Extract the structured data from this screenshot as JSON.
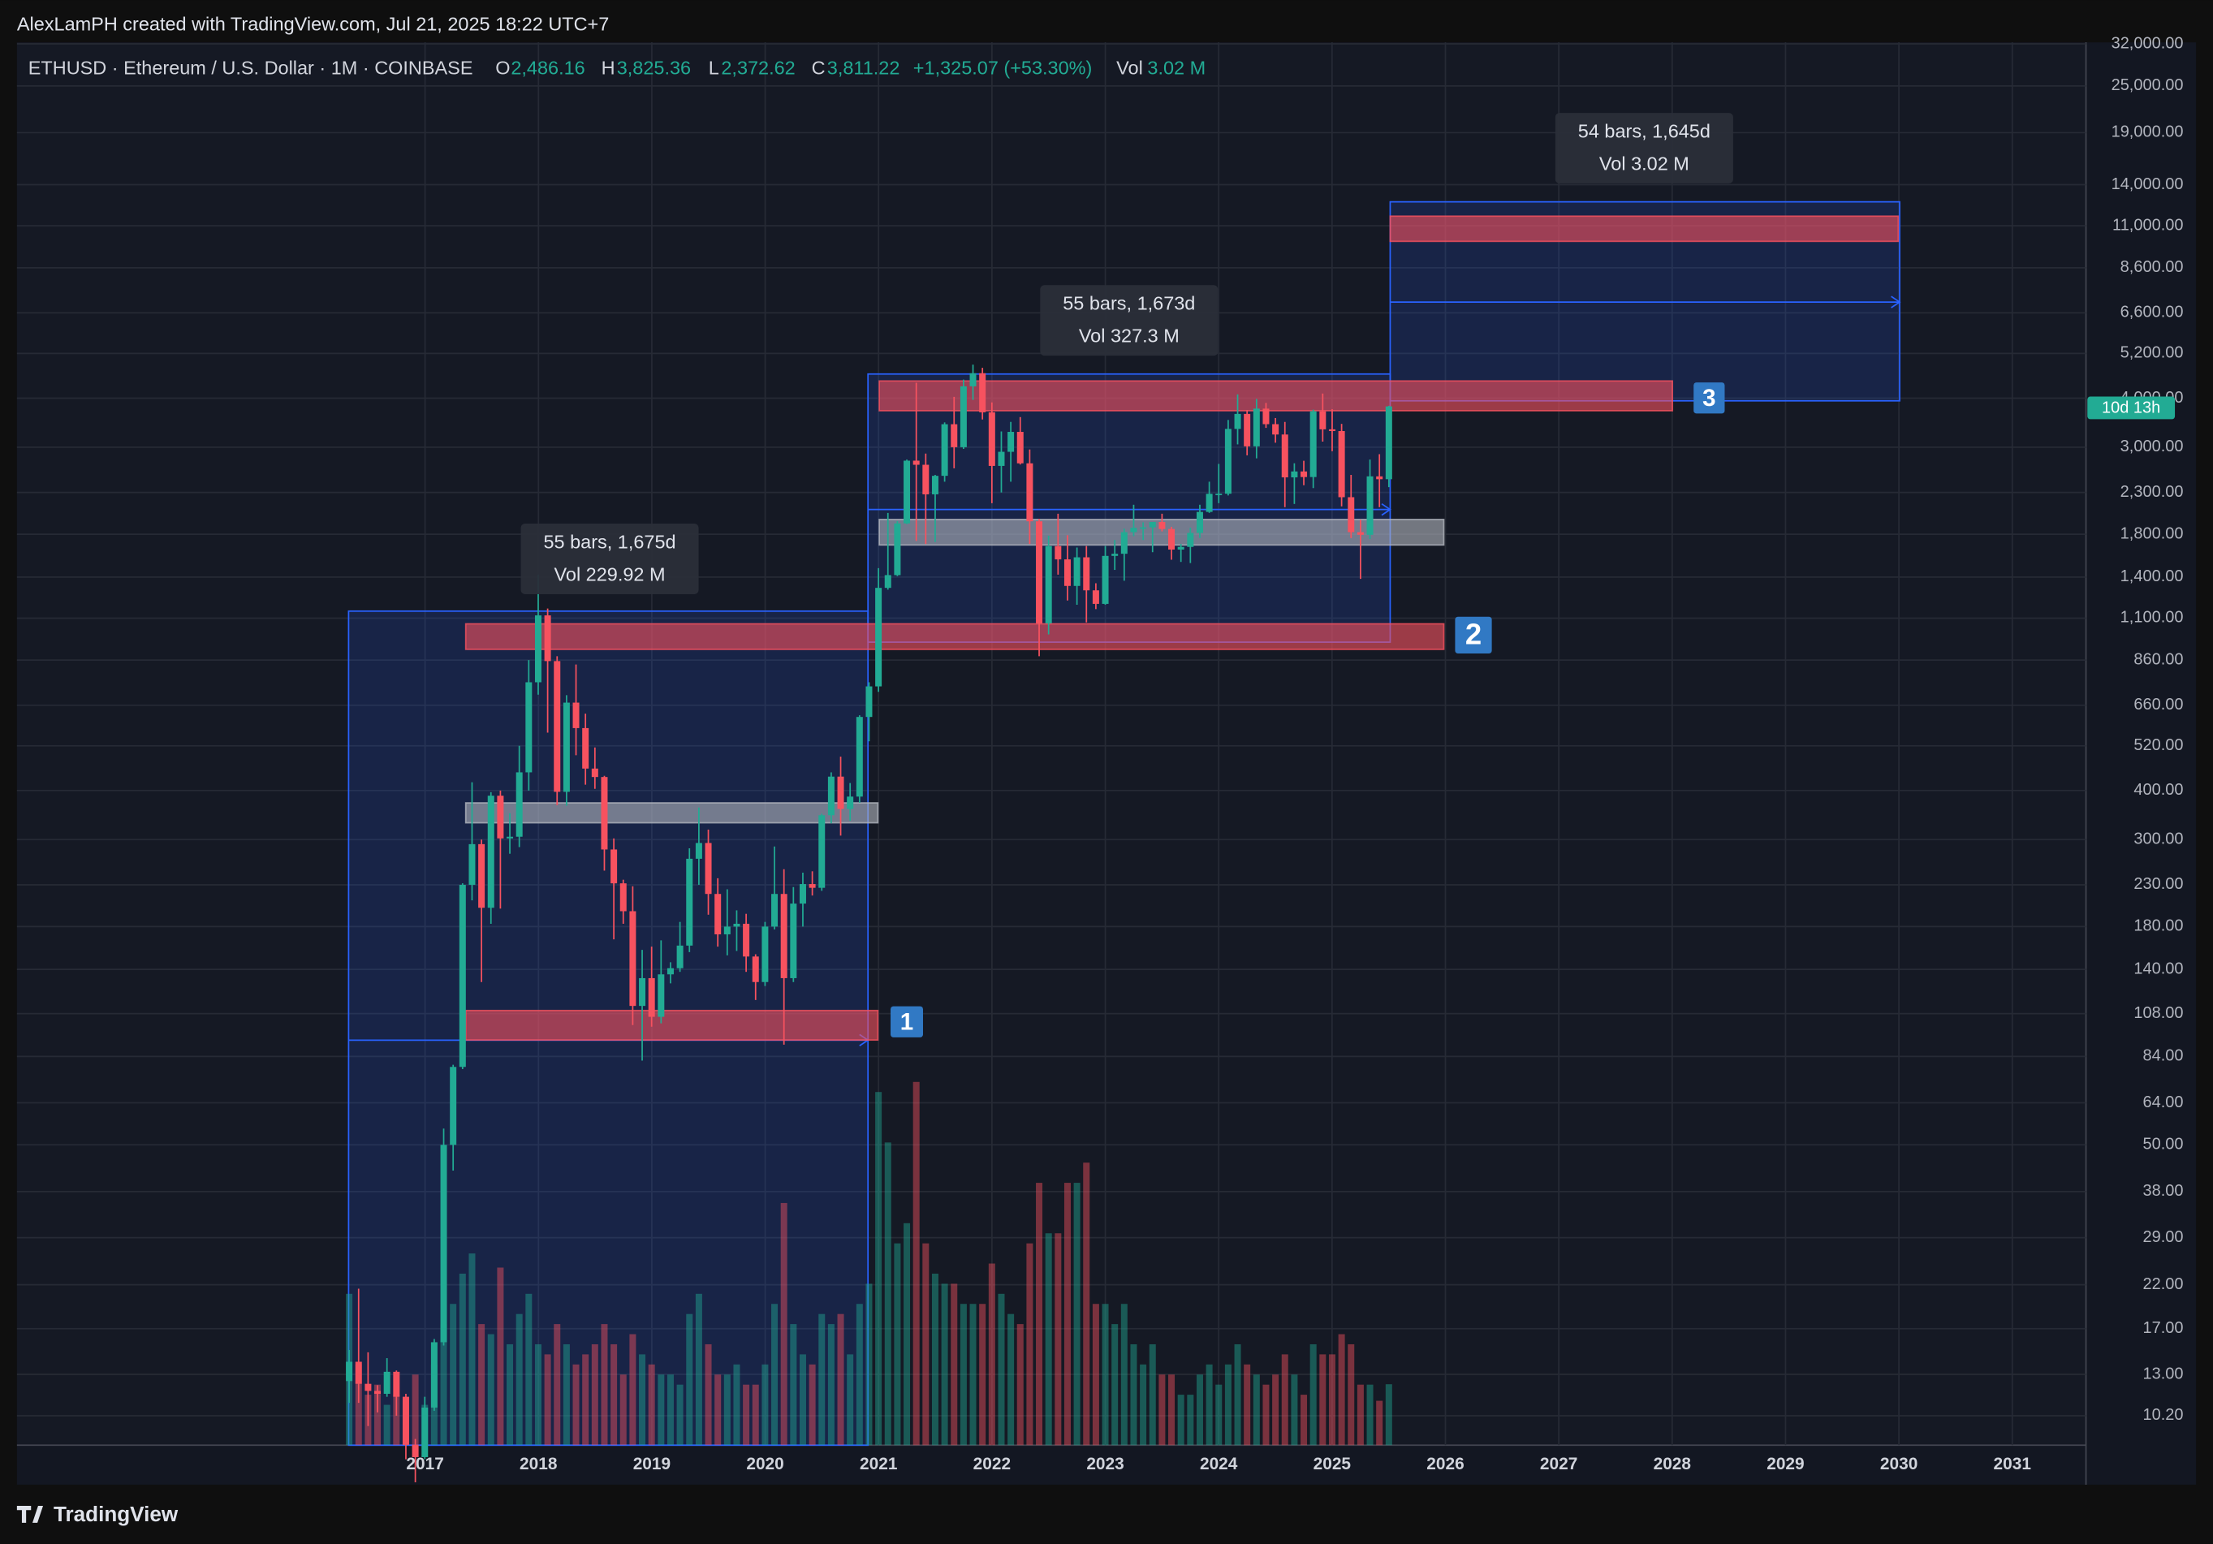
{
  "header": {
    "title": "AlexLamPH created with TradingView.com, Jul 21, 2025 18:22 UTC+7"
  },
  "legend": {
    "symbol": "ETHUSD · Ethereum / U.S. Dollar · 1M · COINBASE",
    "o_label": "O",
    "o": "2,486.16",
    "h_label": "H",
    "h": "3,825.36",
    "l_label": "L",
    "l": "2,372.62",
    "c_label": "C",
    "c": "3,811.22",
    "change": "+1,325.07 (+53.30%)",
    "vol_label": "Vol",
    "vol": "3.02 M"
  },
  "chart_data": {
    "type": "candlestick",
    "log_scale": true,
    "grid": true,
    "colors": {
      "up": "#22ab94",
      "down": "#f7525f"
    },
    "ylim": [
      8.58,
      32280
    ],
    "yticks": [
      {
        "value": 32000,
        "label": "32,000.00"
      },
      {
        "value": 25000,
        "label": "25,000.00"
      },
      {
        "value": 19000,
        "label": "19,000.00"
      },
      {
        "value": 14000,
        "label": "14,000.00"
      },
      {
        "value": 11000,
        "label": "11,000.00"
      },
      {
        "value": 8600,
        "label": "8,600.00"
      },
      {
        "value": 6600,
        "label": "6,600.00"
      },
      {
        "value": 5200,
        "label": "5,200.00"
      },
      {
        "value": 4000,
        "label": "4,000.00"
      },
      {
        "value": 3000,
        "label": "3,000.00"
      },
      {
        "value": 2300,
        "label": "2,300.00"
      },
      {
        "value": 1800,
        "label": "1,800.00"
      },
      {
        "value": 1400,
        "label": "1,400.00"
      },
      {
        "value": 1100,
        "label": "1,100.00"
      },
      {
        "value": 860,
        "label": "860.00"
      },
      {
        "value": 660,
        "label": "660.00"
      },
      {
        "value": 520,
        "label": "520.00"
      },
      {
        "value": 400,
        "label": "400.00"
      },
      {
        "value": 300,
        "label": "300.00"
      },
      {
        "value": 230,
        "label": "230.00"
      },
      {
        "value": 180,
        "label": "180.00"
      },
      {
        "value": 140,
        "label": "140.00"
      },
      {
        "value": 108,
        "label": "108.00"
      },
      {
        "value": 84,
        "label": "84.00"
      },
      {
        "value": 64,
        "label": "64.00"
      },
      {
        "value": 50,
        "label": "50.00"
      },
      {
        "value": 38,
        "label": "38.00"
      },
      {
        "value": 29,
        "label": "29.00"
      },
      {
        "value": 22,
        "label": "22.00"
      },
      {
        "value": 17,
        "label": "17.00"
      },
      {
        "value": 13,
        "label": "13.00"
      },
      {
        "value": 10.2,
        "label": "10.20"
      }
    ],
    "xlim": [
      2013.4,
      2031.65
    ],
    "xticks": [
      2017,
      2018,
      2019,
      2020,
      2021,
      2022,
      2023,
      2024,
      2025,
      2026,
      2027,
      2028,
      2029,
      2030,
      2031
    ],
    "candles": [
      [
        12.5,
        15.0,
        11.0,
        14.0
      ],
      [
        14.0,
        21.5,
        11.0,
        12.3
      ],
      [
        12.3,
        14.8,
        9.6,
        11.8
      ],
      [
        11.8,
        12.2,
        10.4,
        11.6
      ],
      [
        11.6,
        14.3,
        11.4,
        13.2
      ],
      [
        13.2,
        13.3,
        10.2,
        11.4
      ],
      [
        11.4,
        11.6,
        7.9,
        8.6
      ],
      [
        8.6,
        8.9,
        6.9,
        8.0
      ],
      [
        8.0,
        11.4,
        7.9,
        10.7
      ],
      [
        10.7,
        16.0,
        10.5,
        15.7
      ],
      [
        15.7,
        55,
        15.4,
        50
      ],
      [
        50,
        80,
        43,
        79
      ],
      [
        79,
        232,
        78,
        230
      ],
      [
        230,
        420,
        210,
        292
      ],
      [
        292,
        300,
        130,
        201
      ],
      [
        201,
        396,
        183,
        388
      ],
      [
        388,
        400,
        200,
        302
      ],
      [
        302,
        350,
        276,
        305
      ],
      [
        305,
        520,
        287,
        445
      ],
      [
        445,
        860,
        400,
        755
      ],
      [
        755,
        1420,
        702,
        1118
      ],
      [
        1118,
        1164,
        562,
        855
      ],
      [
        855,
        880,
        367,
        397
      ],
      [
        397,
        700,
        366,
        670
      ],
      [
        670,
        838,
        492,
        577
      ],
      [
        577,
        628,
        414,
        455
      ],
      [
        455,
        515,
        404,
        433
      ],
      [
        433,
        436,
        250,
        283
      ],
      [
        283,
        302,
        167,
        232
      ],
      [
        232,
        237,
        183,
        197
      ],
      [
        197,
        228,
        101,
        113
      ],
      [
        113,
        157,
        82,
        133
      ],
      [
        133,
        160,
        100,
        106
      ],
      [
        106,
        166,
        102,
        136
      ],
      [
        136,
        146,
        129,
        141
      ],
      [
        141,
        185,
        138,
        161
      ],
      [
        161,
        285,
        155,
        268
      ],
      [
        268,
        362,
        230,
        294
      ],
      [
        294,
        318,
        193,
        218
      ],
      [
        218,
        239,
        160,
        172
      ],
      [
        172,
        224,
        152,
        180
      ],
      [
        180,
        198,
        156,
        183
      ],
      [
        183,
        194,
        138,
        151
      ],
      [
        151,
        153,
        117,
        130
      ],
      [
        130,
        185,
        127,
        180
      ],
      [
        180,
        288,
        177,
        218
      ],
      [
        218,
        252,
        90,
        133
      ],
      [
        133,
        227,
        130,
        206
      ],
      [
        206,
        247,
        180,
        231
      ],
      [
        231,
        249,
        216,
        226
      ],
      [
        226,
        349,
        222,
        346
      ],
      [
        346,
        445,
        330,
        434
      ],
      [
        434,
        488,
        307,
        359
      ],
      [
        359,
        418,
        335,
        386
      ],
      [
        386,
        622,
        372,
        616
      ],
      [
        616,
        755,
        534,
        737
      ],
      [
        737,
        1475,
        714,
        1314
      ],
      [
        1314,
        2040,
        1300,
        1416
      ],
      [
        1416,
        1945,
        1408,
        1918
      ],
      [
        1918,
        2790,
        1910,
        2772
      ],
      [
        2772,
        4380,
        1730,
        2706
      ],
      [
        2706,
        2890,
        1700,
        2275
      ],
      [
        2275,
        2550,
        1720,
        2536
      ],
      [
        2536,
        3470,
        2450,
        3433
      ],
      [
        3433,
        4030,
        2650,
        3000
      ],
      [
        3000,
        4460,
        2970,
        4288
      ],
      [
        4288,
        4870,
        3960,
        4631
      ],
      [
        4631,
        4780,
        3530,
        3682
      ],
      [
        3682,
        3900,
        2160,
        2688
      ],
      [
        2688,
        3290,
        2300,
        2920
      ],
      [
        2920,
        3480,
        2450,
        3282
      ],
      [
        3282,
        3580,
        2710,
        2729
      ],
      [
        2729,
        2960,
        1700,
        1942
      ],
      [
        1942,
        1970,
        880,
        1067
      ],
      [
        1067,
        1785,
        1000,
        1679
      ],
      [
        1679,
        2030,
        1420,
        1553
      ],
      [
        1553,
        1790,
        1220,
        1329
      ],
      [
        1329,
        1665,
        1190,
        1572
      ],
      [
        1572,
        1680,
        1073,
        1295
      ],
      [
        1295,
        1350,
        1160,
        1196
      ],
      [
        1196,
        1680,
        1190,
        1585
      ],
      [
        1585,
        1740,
        1460,
        1605
      ],
      [
        1605,
        1860,
        1370,
        1822
      ],
      [
        1822,
        2140,
        1780,
        1869
      ],
      [
        1869,
        1930,
        1740,
        1874
      ],
      [
        1874,
        1930,
        1620,
        1934
      ],
      [
        1934,
        2030,
        1830,
        1856
      ],
      [
        1856,
        1880,
        1550,
        1645
      ],
      [
        1645,
        1700,
        1530,
        1671
      ],
      [
        1671,
        1870,
        1520,
        1814
      ],
      [
        1814,
        2140,
        1760,
        2052
      ],
      [
        2052,
        2450,
        2040,
        2282
      ],
      [
        2282,
        2720,
        2160,
        2283
      ],
      [
        2283,
        3520,
        2260,
        3340
      ],
      [
        3340,
        4090,
        3050,
        3647
      ],
      [
        3647,
        3730,
        2860,
        3015
      ],
      [
        3015,
        3980,
        2810,
        3762
      ],
      [
        3762,
        3890,
        3360,
        3434
      ],
      [
        3434,
        3560,
        3080,
        3232
      ],
      [
        3232,
        3480,
        2110,
        2513
      ],
      [
        2513,
        2730,
        2150,
        2602
      ],
      [
        2602,
        2770,
        2400,
        2518
      ],
      [
        2518,
        3740,
        2360,
        3705
      ],
      [
        3705,
        4110,
        3100,
        3332
      ],
      [
        3332,
        3750,
        2930,
        3298
      ],
      [
        3298,
        3440,
        2120,
        2237
      ],
      [
        2237,
        2550,
        1760,
        1822
      ],
      [
        1822,
        1960,
        1385,
        1794
      ],
      [
        1794,
        2790,
        1750,
        2528
      ],
      [
        2528,
        2880,
        2110,
        2486
      ],
      [
        2486.16,
        3825.36,
        2372.62,
        3811.22
      ]
    ],
    "volume": [
      7.5,
      4,
      2.5,
      3,
      2,
      2.5,
      2.2,
      3.5,
      2,
      4,
      6,
      7,
      8.5,
      9.5,
      6,
      5.5,
      8.8,
      5,
      6.5,
      7.5,
      5,
      4.5,
      6,
      5,
      4,
      4.5,
      5,
      6,
      5,
      3.5,
      5.5,
      4.5,
      4,
      3.5,
      3.5,
      3,
      6.5,
      7.5,
      5,
      3.5,
      3.5,
      4,
      3,
      3,
      4,
      7,
      12,
      6,
      4.5,
      4,
      6.5,
      6,
      6.5,
      4.5,
      7,
      8,
      17.5,
      15,
      10,
      11,
      18,
      10,
      8.5,
      8,
      8,
      7,
      7,
      7,
      9,
      7.5,
      6.5,
      6,
      10,
      13,
      10.5,
      10.5,
      13,
      13,
      14,
      7,
      7,
      6,
      7,
      5,
      4,
      5,
      3.5,
      3.5,
      2.5,
      2.5,
      3.5,
      4,
      3,
      4,
      5,
      4,
      3.5,
      3,
      3.5,
      4.5,
      3.5,
      2.5,
      5,
      4.5,
      4.5,
      5.5,
      5,
      3,
      3,
      2.2,
      3.02
    ],
    "zones": [
      {
        "low": 92.5,
        "high": 110,
        "color": "#f7525f"
      },
      {
        "low": 331,
        "high": 372,
        "color": "#b2b5be"
      },
      {
        "low": 916,
        "high": 1064,
        "color": "#f7525f"
      },
      {
        "low": 1690,
        "high": 1963,
        "color": "#b2b5be"
      },
      {
        "low": 3716,
        "high": 4425,
        "color": "#f7525f"
      },
      {
        "low": 10040,
        "high": 11640,
        "color": "#f7525f"
      }
    ],
    "measures": [
      {
        "bars": "55 bars, 1,675d",
        "vol": "Vol 229.92 M"
      },
      {
        "bars": "55 bars, 1,673d",
        "vol": "Vol 327.3 M"
      },
      {
        "bars": "54 bars, 1,645d",
        "vol": "Vol 3.02 M"
      }
    ],
    "markers": [
      "1",
      "2",
      "3"
    ],
    "countdown": "10d 13h"
  },
  "footer": {
    "brand": "TradingView"
  }
}
